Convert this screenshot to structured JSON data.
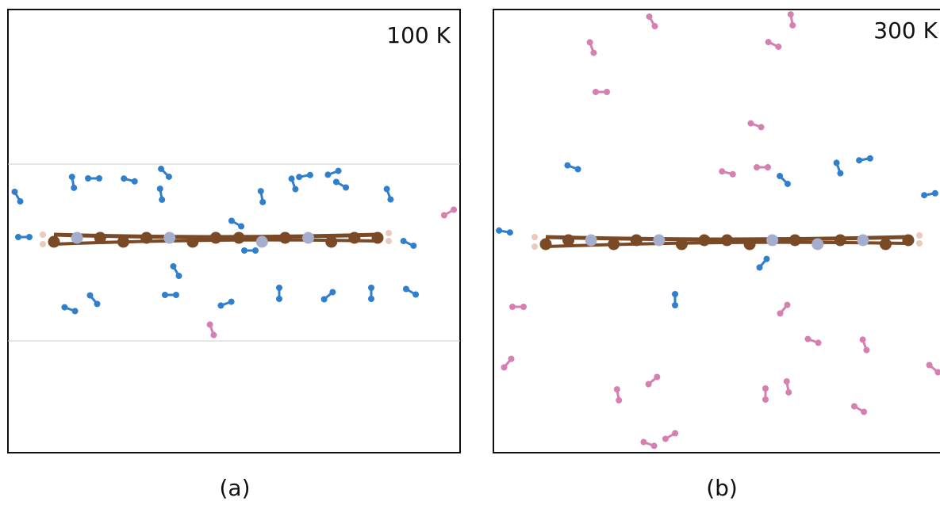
{
  "panels": [
    {
      "temperature": "100 K",
      "label": "(a)"
    },
    {
      "temperature": "300 K",
      "label": "(b)"
    }
  ]
}
